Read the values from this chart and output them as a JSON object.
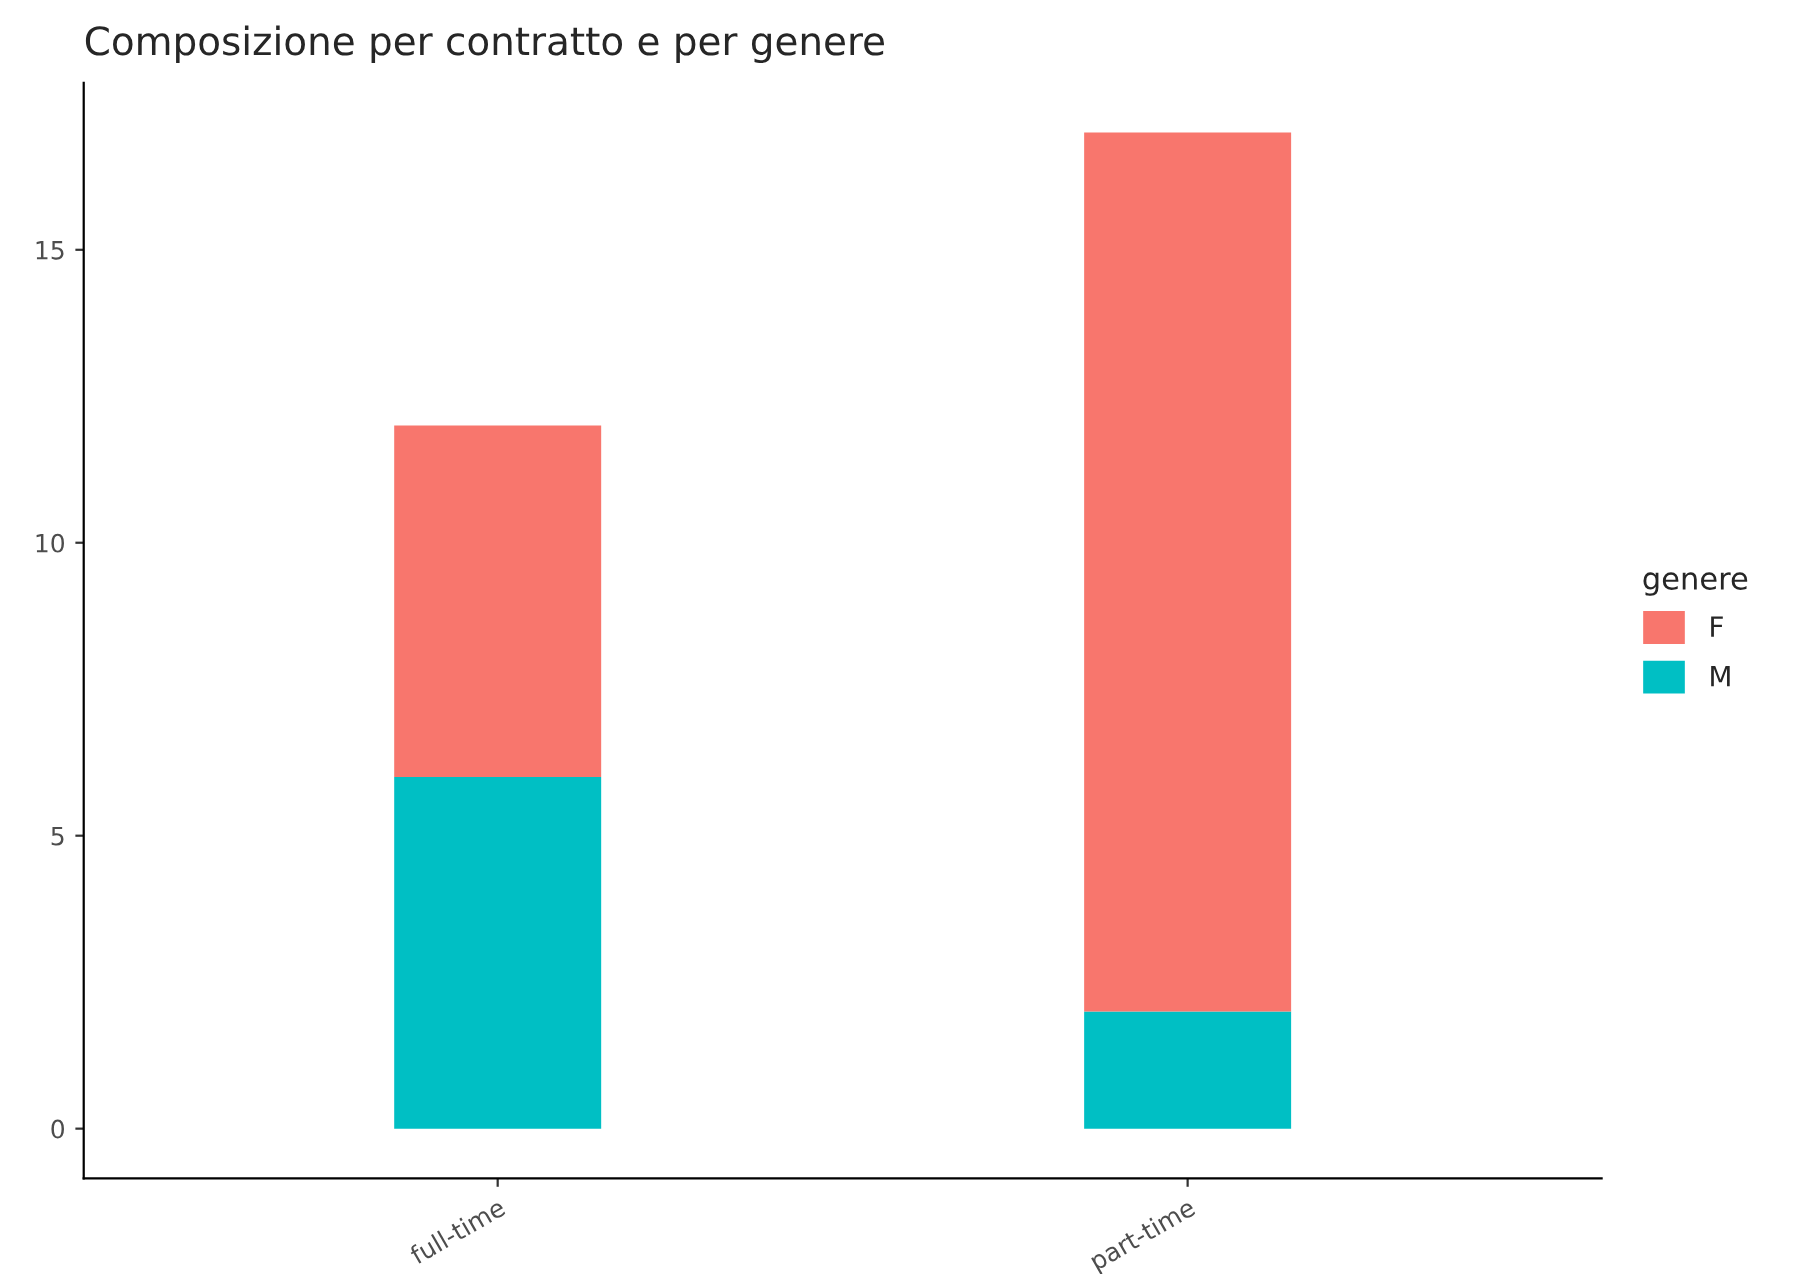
{
  "chart_data": {
    "type": "bar",
    "title": "Composizione per contratto e per genere",
    "categories": [
      "full-time",
      "part-time"
    ],
    "stacked": true,
    "legend_title": "genere",
    "legend": "right",
    "series": [
      {
        "name": "M",
        "color": "#00bfc4",
        "values": [
          6,
          2
        ]
      },
      {
        "name": "F",
        "color": "#f8766d",
        "values": [
          6,
          15
        ]
      }
    ],
    "ylim": [
      -0.85,
      17.85
    ],
    "yticks": [
      0,
      5,
      10,
      15
    ],
    "grid": false
  }
}
